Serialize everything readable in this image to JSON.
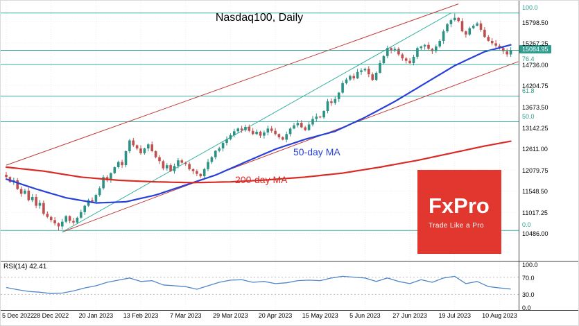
{
  "logo": {
    "name": "FxPro",
    "tagline": "Trade Like a Pro",
    "bg": "#e1372e"
  },
  "chart_data": {
    "type": "candlestick",
    "title": "Nasdaq100, Daily",
    "price_axis": {
      "min": 9850,
      "max": 16330,
      "ticks": [
        15798.5,
        15267.25,
        14736.0,
        14204.75,
        13673.5,
        13142.25,
        12611.0,
        12079.75,
        11548.5,
        11017.25,
        10486.0
      ],
      "current_price": 15084.95
    },
    "date_ticks": [
      "5 Dec 2022",
      "28 Dec 2022",
      "20 Jan 2023",
      "13 Feb 2023",
      "7 Mar 2023",
      "29 Mar 2023",
      "20 Apr 2023",
      "15 May 2023",
      "5 Jun 2023",
      "27 Jun 2023",
      "19 Jul 2023",
      "10 Aug 2023"
    ],
    "date_tick_step": 12,
    "closes": [
      11900,
      11780,
      11820,
      11600,
      11480,
      11560,
      11320,
      11400,
      11180,
      11250,
      10980,
      10900,
      10820,
      10740,
      10660,
      10780,
      10920,
      10800,
      10760,
      10880,
      11020,
      11180,
      11320,
      11280,
      11450,
      11620,
      11900,
      11820,
      12000,
      12150,
      12280,
      12200,
      12550,
      12820,
      12700,
      12620,
      12500,
      12620,
      12720,
      12550,
      12400,
      12300,
      12120,
      12200,
      12050,
      12180,
      12320,
      12260,
      12230,
      12100,
      12050,
      11980,
      11920,
      12100,
      12280,
      12400,
      12560,
      12620,
      12760,
      12850,
      12950,
      13050,
      13120,
      13080,
      13160,
      13060,
      12980,
      13040,
      12940,
      13020,
      13120,
      13060,
      12980,
      12900,
      12840,
      12980,
      13120,
      13200,
      13260,
      13150,
      13080,
      13220,
      13360,
      13420,
      13400,
      13560,
      13800,
      13760,
      13860,
      14020,
      14260,
      14350,
      14440,
      14380,
      14540,
      14580,
      14620,
      14480,
      14340,
      14520,
      14760,
      14940,
      15140,
      15080,
      15120,
      14980,
      14880,
      14820,
      14760,
      14920,
      15140,
      15180,
      15220,
      15120,
      15060,
      15180,
      15320,
      15560,
      15740,
      15840,
      15900,
      15820,
      15560,
      15480,
      15640,
      15700,
      15760,
      15600,
      15420,
      15320,
      15260,
      15200,
      15140,
      15060,
      14980,
      15085
    ],
    "wick_overrides": [
      {
        "i": 120,
        "high": 16010
      },
      {
        "i": 14,
        "low": 10560
      }
    ],
    "moving_averages": [
      {
        "name": "50-day MA",
        "color": "#2740d8",
        "points": [
          [
            0,
            11850
          ],
          [
            8,
            11600
          ],
          [
            16,
            11380
          ],
          [
            24,
            11250
          ],
          [
            32,
            11280
          ],
          [
            40,
            11450
          ],
          [
            48,
            11700
          ],
          [
            56,
            11950
          ],
          [
            64,
            12280
          ],
          [
            72,
            12600
          ],
          [
            80,
            12850
          ],
          [
            88,
            13050
          ],
          [
            96,
            13400
          ],
          [
            104,
            13800
          ],
          [
            112,
            14250
          ],
          [
            120,
            14700
          ],
          [
            128,
            15050
          ],
          [
            135,
            15220
          ]
        ]
      },
      {
        "name": "200-day MA",
        "color": "#d92b25",
        "points": [
          [
            0,
            12150
          ],
          [
            10,
            12050
          ],
          [
            20,
            11900
          ],
          [
            30,
            11820
          ],
          [
            40,
            11780
          ],
          [
            50,
            11760
          ],
          [
            60,
            11780
          ],
          [
            70,
            11830
          ],
          [
            80,
            11900
          ],
          [
            90,
            12000
          ],
          [
            100,
            12150
          ],
          [
            110,
            12320
          ],
          [
            120,
            12520
          ],
          [
            128,
            12680
          ],
          [
            135,
            12800
          ]
        ]
      }
    ],
    "fibonacci_levels": [
      {
        "label": "100.0",
        "value": 16020
      },
      {
        "label": "76.4",
        "value": 14731
      },
      {
        "label": "61.8",
        "value": 13934
      },
      {
        "label": "50.0",
        "value": 13290
      },
      {
        "label": "0.0",
        "value": 10560
      }
    ],
    "trendlines": [
      {
        "name": "channel-upper",
        "color": "#c23b3b",
        "from": [
          0,
          12200
        ],
        "to": [
          121,
          16250
        ]
      },
      {
        "name": "channel-lower",
        "color": "#c23b3b",
        "from": [
          15,
          10520
        ],
        "to": [
          137,
          14800
        ]
      },
      {
        "name": "fib-diagonal",
        "color": "#35b0a0",
        "from": [
          15,
          10520
        ],
        "to": [
          119,
          16020
        ]
      }
    ],
    "rsi": {
      "label": "RSI(14) 42.41",
      "period": 14,
      "value": 42.41,
      "axis_ticks": [
        100.0,
        70.0,
        30.0,
        0.0
      ],
      "guides": [
        70,
        30
      ],
      "points": [
        [
          0,
          46
        ],
        [
          3,
          41
        ],
        [
          6,
          37
        ],
        [
          9,
          35
        ],
        [
          12,
          32
        ],
        [
          15,
          33
        ],
        [
          18,
          38
        ],
        [
          21,
          45
        ],
        [
          24,
          50
        ],
        [
          27,
          58
        ],
        [
          30,
          63
        ],
        [
          33,
          68
        ],
        [
          36,
          60
        ],
        [
          39,
          62
        ],
        [
          42,
          52
        ],
        [
          45,
          50
        ],
        [
          48,
          48
        ],
        [
          51,
          42
        ],
        [
          54,
          50
        ],
        [
          57,
          58
        ],
        [
          60,
          63
        ],
        [
          63,
          64
        ],
        [
          66,
          58
        ],
        [
          69,
          60
        ],
        [
          72,
          55
        ],
        [
          75,
          57
        ],
        [
          78,
          62
        ],
        [
          81,
          63
        ],
        [
          84,
          62
        ],
        [
          87,
          68
        ],
        [
          90,
          72
        ],
        [
          93,
          70
        ],
        [
          96,
          68
        ],
        [
          99,
          60
        ],
        [
          102,
          68
        ],
        [
          105,
          60
        ],
        [
          108,
          55
        ],
        [
          111,
          64
        ],
        [
          114,
          58
        ],
        [
          117,
          68
        ],
        [
          120,
          72
        ],
        [
          123,
          55
        ],
        [
          126,
          60
        ],
        [
          129,
          48
        ],
        [
          132,
          45
        ],
        [
          135,
          42.41
        ]
      ]
    },
    "colors": {
      "candle_up": "#2c9286",
      "candle_down": "#c0504d",
      "fib_line": "#3cb0a2",
      "fib_label": "#2e9e8f",
      "rsi_line": "#4f86c6",
      "price_tag_bg": "#2e9e8f",
      "current_price_line": "#2e9e8f",
      "grid": "#ededed"
    }
  }
}
